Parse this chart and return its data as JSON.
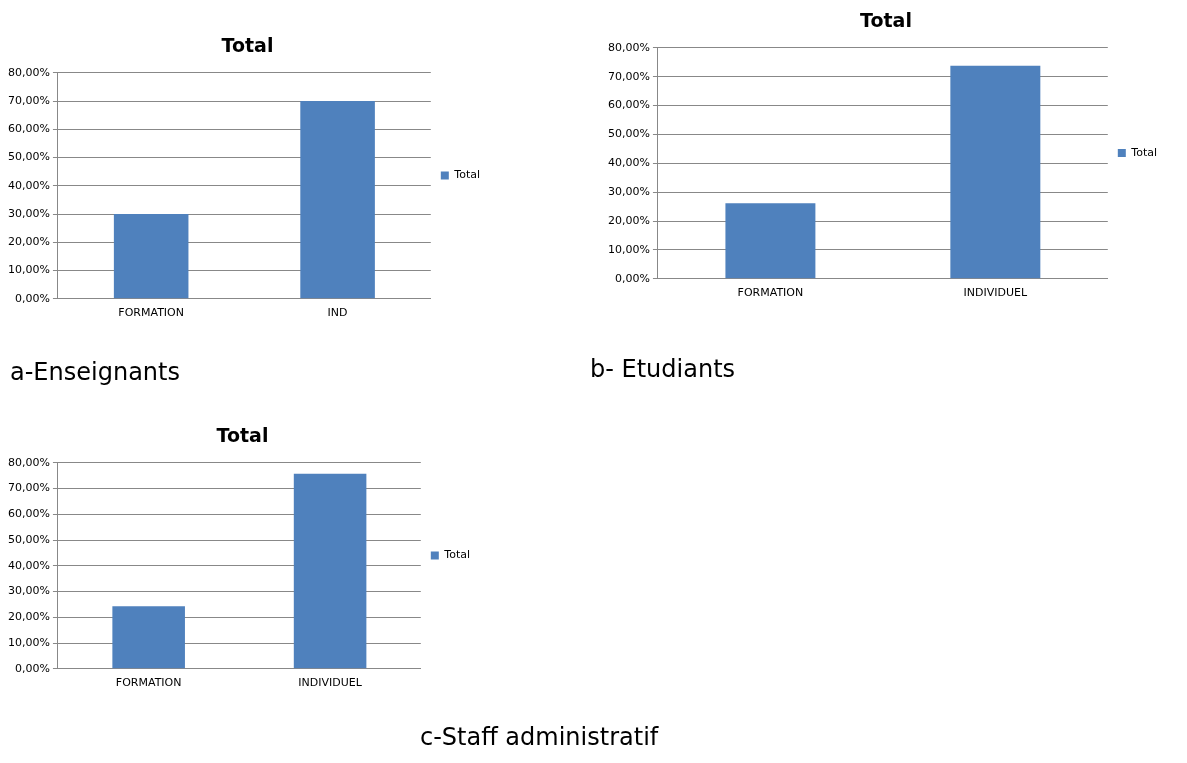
{
  "chart_data": [
    {
      "type": "bar",
      "title": "Total",
      "categories": [
        "FORMATION",
        "IND"
      ],
      "series": [
        {
          "name": "Total",
          "color": "#4f81bd",
          "values": [
            30,
            70
          ]
        }
      ],
      "ylim": [
        0,
        80
      ],
      "yticks": [
        {
          "value": 0,
          "label": "0,00%"
        },
        {
          "value": 10,
          "label": "10,00%"
        },
        {
          "value": 20,
          "label": "20,00%"
        },
        {
          "value": 30,
          "label": "30,00%"
        },
        {
          "value": 40,
          "label": "40,00%"
        },
        {
          "value": 50,
          "label": "50,00%"
        },
        {
          "value": 60,
          "label": "60,00%"
        },
        {
          "value": 70,
          "label": "70,00%"
        },
        {
          "value": 80,
          "label": "80,00%"
        }
      ],
      "grid": "y",
      "legend": "right",
      "annotations": [
        "a-Enseignants"
      ]
    },
    {
      "type": "bar",
      "title": "Total",
      "categories": [
        "FORMATION",
        "INDIVIDUEL"
      ],
      "series": [
        {
          "name": "Total",
          "color": "#4f81bd",
          "values": [
            26.2,
            73.8
          ]
        }
      ],
      "ylim": [
        0,
        80
      ],
      "yticks": [
        {
          "value": 0,
          "label": "0,00%"
        },
        {
          "value": 10,
          "label": "10,00%"
        },
        {
          "value": 20,
          "label": "20,00%"
        },
        {
          "value": 30,
          "label": "30,00%"
        },
        {
          "value": 40,
          "label": "40,00%"
        },
        {
          "value": 50,
          "label": "50,00%"
        },
        {
          "value": 60,
          "label": "60,00%"
        },
        {
          "value": 70,
          "label": "70,00%"
        },
        {
          "value": 80,
          "label": "80,00%"
        }
      ],
      "grid": "y",
      "legend": "right",
      "annotations": [
        "b- Etudiants"
      ]
    },
    {
      "type": "bar",
      "title": "Total",
      "categories": [
        "FORMATION",
        "INDIVIDUEL"
      ],
      "series": [
        {
          "name": "Total",
          "color": "#4f81bd",
          "values": [
            24.3,
            75.7
          ]
        }
      ],
      "ylim": [
        0,
        80
      ],
      "yticks": [
        {
          "value": 0,
          "label": "0,00%"
        },
        {
          "value": 10,
          "label": "10,00%"
        },
        {
          "value": 20,
          "label": "20,00%"
        },
        {
          "value": 30,
          "label": "30,00%"
        },
        {
          "value": 40,
          "label": "40,00%"
        },
        {
          "value": 50,
          "label": "50,00%"
        },
        {
          "value": 60,
          "label": "60,00%"
        },
        {
          "value": 70,
          "label": "70,00%"
        },
        {
          "value": 80,
          "label": "80,00%"
        }
      ],
      "grid": "y",
      "legend": "right",
      "annotations": [
        "c-Staff administratif"
      ]
    }
  ]
}
